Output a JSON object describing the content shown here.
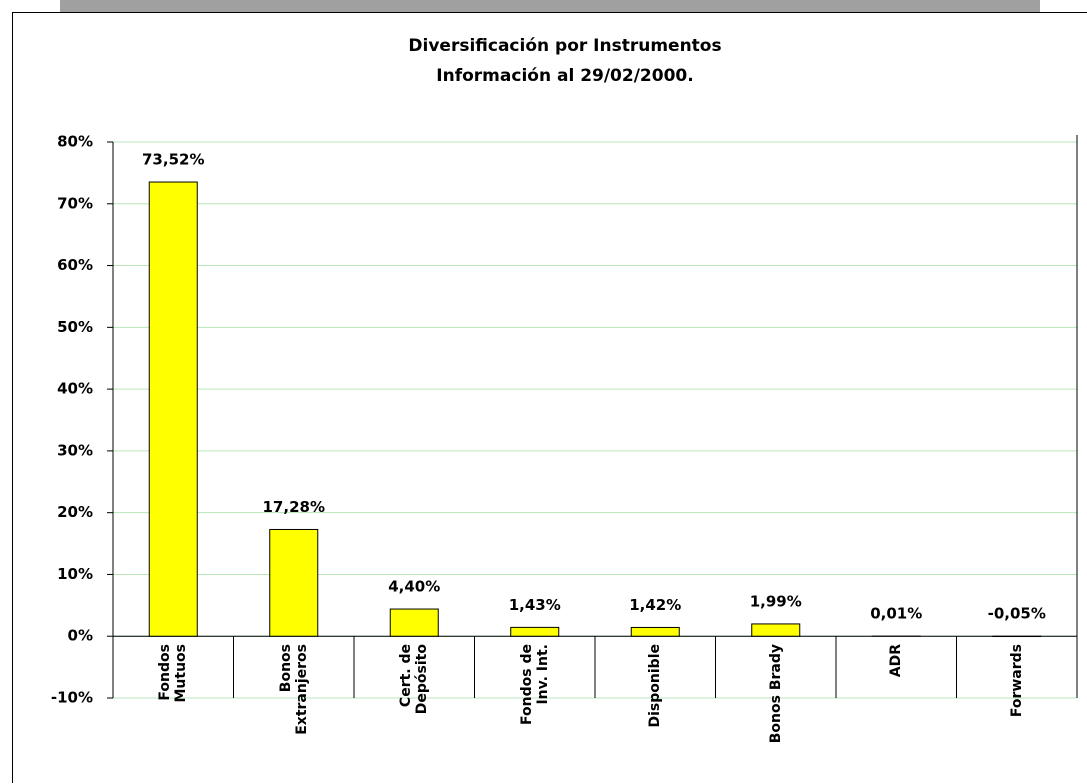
{
  "chart_data": {
    "type": "bar",
    "title": "Diversificación por Instrumentos",
    "subtitle": "Información al 29/02/2000.",
    "categories": [
      "Fondos\nMutuos",
      "Bonos\nExtranjeros",
      "Cert. de\nDepósito",
      "Fondos de\nInv. Int.",
      "Disponible",
      "Bonos Brady",
      "ADR",
      "Forwards"
    ],
    "values": [
      73.52,
      17.28,
      4.4,
      1.43,
      1.42,
      1.99,
      0.01,
      -0.05
    ],
    "value_labels": [
      "73,52%",
      "17,28%",
      "4,40%",
      "1,43%",
      "1,42%",
      "1,99%",
      "0,01%",
      "-0,05%"
    ],
    "color": "#ffff00",
    "ylim": [
      -10,
      80
    ],
    "yticks": [
      {
        "value": -10,
        "label": "-10%"
      },
      {
        "value": 0,
        "label": "0%"
      },
      {
        "value": 10,
        "label": "10%"
      },
      {
        "value": 20,
        "label": "20%"
      },
      {
        "value": 30,
        "label": "30%"
      },
      {
        "value": 40,
        "label": "40%"
      },
      {
        "value": 50,
        "label": "50%"
      },
      {
        "value": 60,
        "label": "60%"
      },
      {
        "value": 70,
        "label": "70%"
      },
      {
        "value": 80,
        "label": "80%"
      }
    ],
    "grid": true
  }
}
